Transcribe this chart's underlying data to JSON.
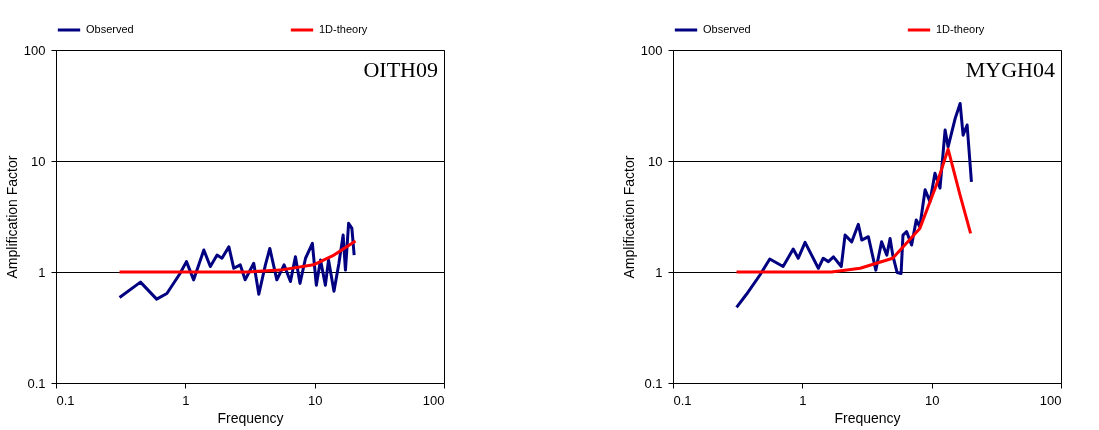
{
  "chart_data": [
    {
      "type": "line",
      "xlabel": "Frequency",
      "ylabel": "Amplification Factor",
      "annotations": [
        "OITH09"
      ],
      "log": "xy",
      "grid": "y",
      "legend": "top",
      "xlim": [
        0.1,
        100
      ],
      "ylim": [
        0.1,
        100
      ],
      "xticks": [
        0.1,
        1,
        10,
        100
      ],
      "yticks": [
        0.1,
        1,
        10,
        100
      ],
      "series": [
        {
          "name": "Observed",
          "color": "#000080",
          "x": [
            0.31,
            0.45,
            0.6,
            0.72,
            0.91,
            1.02,
            1.16,
            1.39,
            1.56,
            1.76,
            1.92,
            2.17,
            2.37,
            2.66,
            2.9,
            3.38,
            3.7,
            4.16,
            4.5,
            5.1,
            5.8,
            6.5,
            7.1,
            7.7,
            8.5,
            9.6,
            10.3,
            11.1,
            12.1,
            12.8,
            14.1,
            15.4,
            16.6,
            17.3,
            18.3,
            19.4,
            20.2
          ],
          "values": [
            0.59,
            0.81,
            0.57,
            0.64,
            0.97,
            1.24,
            0.85,
            1.58,
            1.12,
            1.42,
            1.33,
            1.69,
            1.08,
            1.16,
            0.85,
            1.2,
            0.63,
            1.16,
            1.63,
            0.85,
            1.16,
            0.82,
            1.37,
            0.79,
            1.33,
            1.81,
            0.76,
            1.28,
            0.76,
            1.28,
            0.67,
            1.2,
            2.15,
            1.04,
            2.75,
            2.47,
            1.42
          ]
        },
        {
          "name": "1D-theory",
          "color": "#ff0000",
          "x": [
            0.31,
            1,
            3,
            5.4,
            9.8,
            14.1,
            20.7
          ],
          "values": [
            1,
            1,
            1,
            1.04,
            1.16,
            1.42,
            1.9
          ]
        }
      ]
    },
    {
      "type": "line",
      "xlabel": "Frequency",
      "ylabel": "Amplification Factor",
      "annotations": [
        "MYGH04"
      ],
      "log": "xy",
      "grid": "y",
      "legend": "top",
      "xlim": [
        0.1,
        100
      ],
      "ylim": [
        0.1,
        100
      ],
      "xticks": [
        0.1,
        1,
        10,
        100
      ],
      "yticks": [
        0.1,
        1,
        10,
        100
      ],
      "series": [
        {
          "name": "Observed",
          "color": "#000080",
          "x": [
            0.31,
            0.37,
            0.47,
            0.56,
            0.71,
            0.85,
            0.93,
            1.05,
            1.33,
            1.45,
            1.59,
            1.74,
            2.0,
            2.14,
            2.41,
            2.71,
            2.88,
            3.24,
            3.7,
            4.1,
            4.5,
            4.77,
            5.0,
            5.4,
            5.8,
            6.0,
            6.4,
            7.0,
            7.6,
            8.1,
            8.9,
            9.7,
            10.6,
            11.6,
            12.7,
            13.4,
            15.2,
            16.6,
            17.5,
            18.8,
            20.3
          ],
          "values": [
            0.48,
            0.63,
            0.94,
            1.31,
            1.12,
            1.61,
            1.33,
            1.85,
            1.08,
            1.33,
            1.24,
            1.37,
            1.12,
            2.15,
            1.87,
            2.69,
            1.94,
            2.08,
            1.04,
            1.87,
            1.42,
            2.0,
            1.42,
            0.99,
            0.97,
            2.15,
            2.31,
            1.75,
            2.94,
            2.56,
            5.5,
            4.3,
            7.75,
            5.7,
            19,
            13.4,
            24.2,
            33,
            17.1,
            21.1,
            6.5
          ]
        },
        {
          "name": "1D-theory",
          "color": "#ff0000",
          "x": [
            0.31,
            1,
            1.68,
            2.8,
            5.0,
            8.1,
            10.9,
            13.4,
            16.6,
            20.0
          ],
          "values": [
            1,
            1,
            1,
            1.08,
            1.33,
            2.47,
            6.1,
            12.8,
            4.9,
            2.23
          ]
        }
      ]
    }
  ]
}
